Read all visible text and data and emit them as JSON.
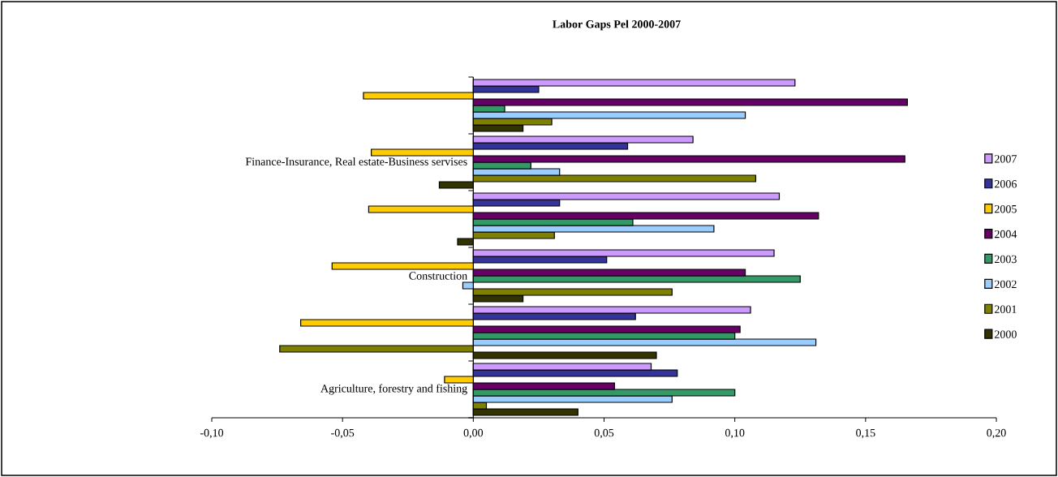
{
  "chart_data": {
    "type": "bar",
    "orientation": "horizontal",
    "title": "Labor Gaps Pel 2000-2007",
    "categories": [
      null,
      "Finance-Insurance, Real estate-Business servises",
      null,
      "Construction",
      null,
      "Agriculture, forestry and fishing"
    ],
    "series": [
      {
        "name": "2007",
        "color": "#cc99ff",
        "values": [
          0.123,
          0.084,
          0.117,
          0.115,
          0.106,
          0.068
        ]
      },
      {
        "name": "2006",
        "color": "#333399",
        "values": [
          0.025,
          0.059,
          0.033,
          0.051,
          0.062,
          0.078
        ]
      },
      {
        "name": "2005",
        "color": "#ffcc00",
        "values": [
          -0.042,
          -0.039,
          -0.04,
          -0.054,
          -0.066,
          -0.011
        ]
      },
      {
        "name": "2004",
        "color": "#660066",
        "values": [
          0.166,
          0.165,
          0.132,
          0.104,
          0.102,
          0.054
        ]
      },
      {
        "name": "2003",
        "color": "#339966",
        "values": [
          0.012,
          0.022,
          0.061,
          0.125,
          0.1,
          0.1
        ]
      },
      {
        "name": "2002",
        "color": "#99ccff",
        "values": [
          0.104,
          0.033,
          0.092,
          -0.004,
          0.131,
          0.076
        ]
      },
      {
        "name": "2001",
        "color": "#808000",
        "values": [
          0.03,
          0.108,
          0.031,
          0.076,
          -0.074,
          0.005
        ]
      },
      {
        "name": "2000",
        "color": "#333300",
        "values": [
          0.019,
          -0.013,
          -0.006,
          0.019,
          0.07,
          0.04
        ]
      }
    ],
    "xlim": [
      -0.1,
      0.2
    ],
    "xticks": [
      {
        "value": -0.1,
        "label": "-0,10"
      },
      {
        "value": -0.05,
        "label": "-0,05"
      },
      {
        "value": 0,
        "label": "0,00"
      },
      {
        "value": 0.05,
        "label": "0,05"
      },
      {
        "value": 0.1,
        "label": "0,10"
      },
      {
        "value": 0.15,
        "label": "0,15"
      },
      {
        "value": 0.2,
        "label": "0,20"
      }
    ],
    "legend": "right"
  }
}
